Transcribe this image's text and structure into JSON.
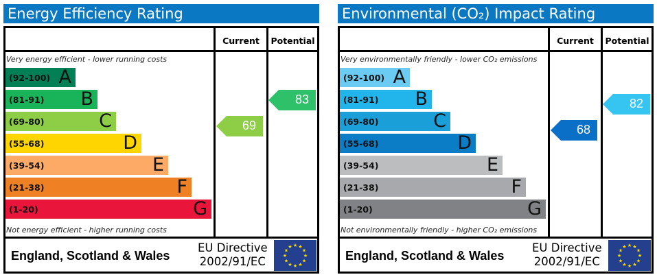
{
  "chart_data": [
    {
      "type": "bar",
      "title": "Energy Efficiency Rating",
      "columns": [
        "Current",
        "Potential"
      ],
      "top_note": "Very energy efficient - lower running costs",
      "bottom_note": "Not energy efficient - higher running costs",
      "bands": [
        {
          "range": "(92-100)",
          "letter": "A",
          "color": "#008054"
        },
        {
          "range": "(81-91)",
          "letter": "B",
          "color": "#19b459"
        },
        {
          "range": "(69-80)",
          "letter": "C",
          "color": "#8dce46"
        },
        {
          "range": "(55-68)",
          "letter": "D",
          "color": "#ffd500"
        },
        {
          "range": "(39-54)",
          "letter": "E",
          "color": "#fcaa65"
        },
        {
          "range": "(21-38)",
          "letter": "F",
          "color": "#ef8023"
        },
        {
          "range": "(1-20)",
          "letter": "G",
          "color": "#e9153b"
        }
      ],
      "current": {
        "value": 69,
        "color": "#8dce46"
      },
      "potential": {
        "value": 83,
        "color": "#2fc16a"
      },
      "region": "England, Scotland & Wales",
      "directive_line1": "EU Directive",
      "directive_line2": "2002/91/EC"
    },
    {
      "type": "bar",
      "title": "Environmental (CO₂) Impact Rating",
      "columns": [
        "Current",
        "Potential"
      ],
      "top_note": "Very environmentally friendly - lower CO₂ emissions",
      "bottom_note": "Not environmentally friendly - higher CO₂ emissions",
      "bands": [
        {
          "range": "(92-100)",
          "letter": "A",
          "color": "#6ccbf2"
        },
        {
          "range": "(81-91)",
          "letter": "B",
          "color": "#22b5eb"
        },
        {
          "range": "(69-80)",
          "letter": "C",
          "color": "#1a9fd9"
        },
        {
          "range": "(55-68)",
          "letter": "D",
          "color": "#0a7dc6"
        },
        {
          "range": "(39-54)",
          "letter": "E",
          "color": "#bbbdbf"
        },
        {
          "range": "(21-38)",
          "letter": "F",
          "color": "#a7a9ac"
        },
        {
          "range": "(1-20)",
          "letter": "G",
          "color": "#808285"
        }
      ],
      "current": {
        "value": 68,
        "color": "#0a6fc6"
      },
      "potential": {
        "value": 82,
        "color": "#36c5f0"
      },
      "region": "England, Scotland & Wales",
      "directive_line1": "EU Directive",
      "directive_line2": "2002/91/EC"
    }
  ]
}
